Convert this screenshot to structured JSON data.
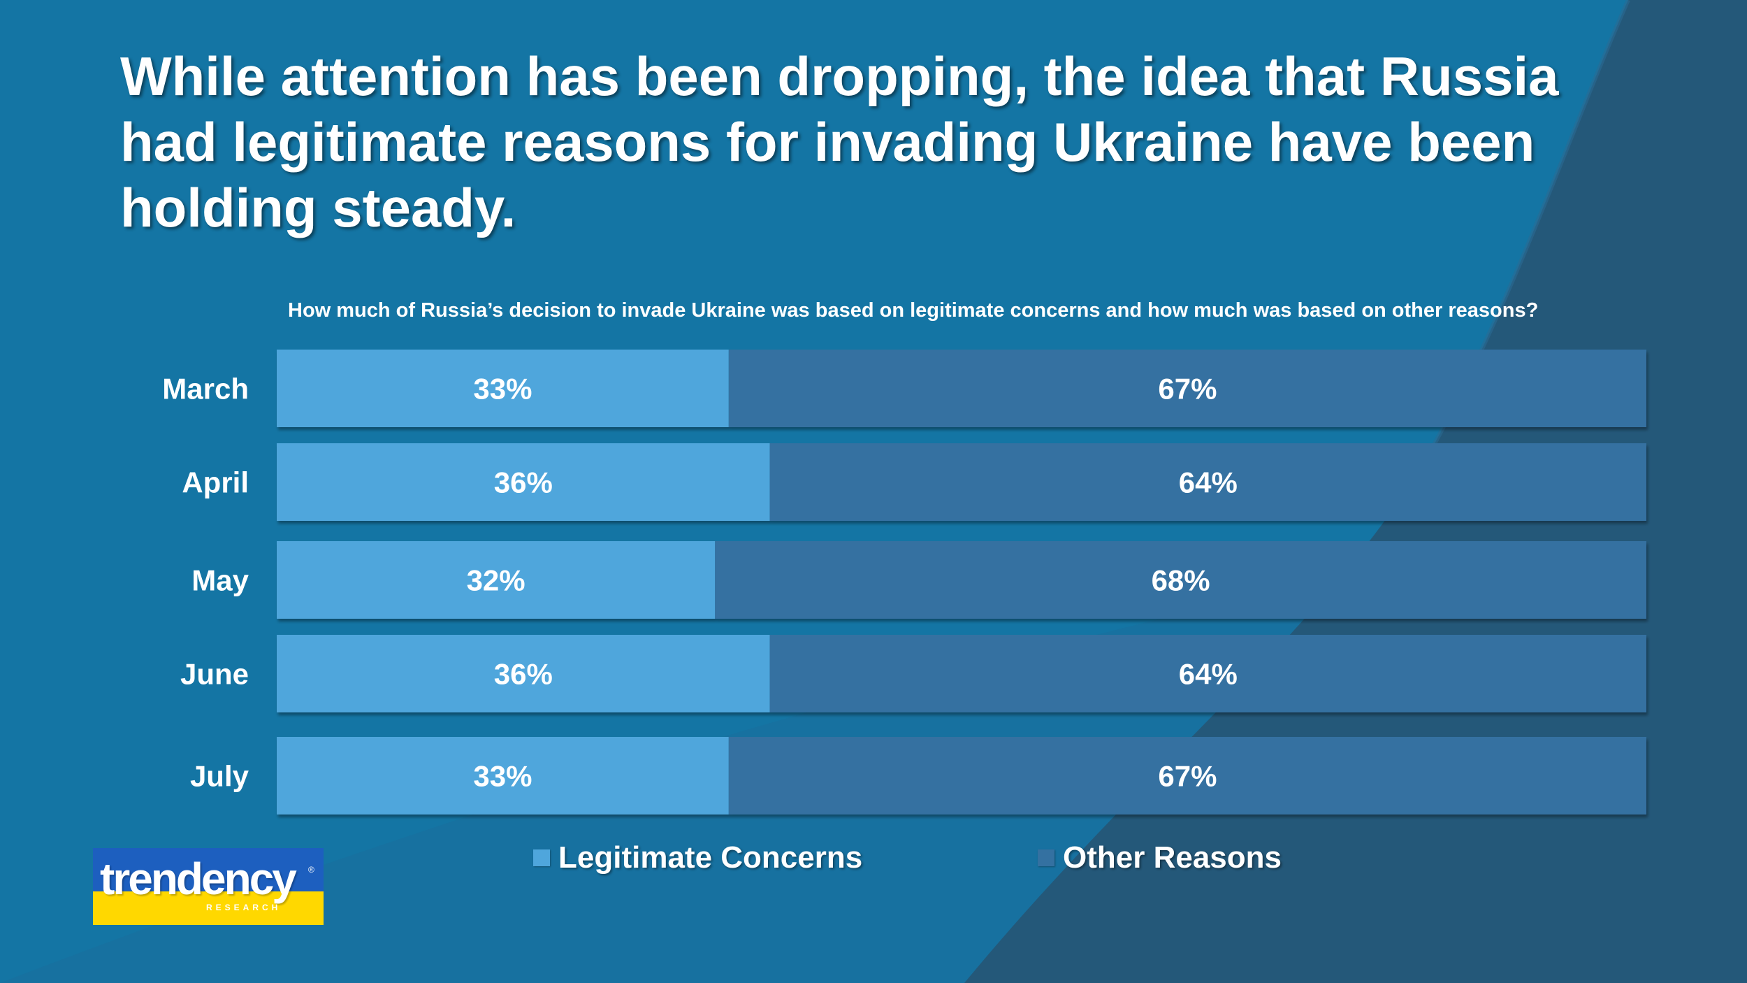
{
  "slide": {
    "title": "While attention has been dropping, the idea that Russia had legitimate reasons for invading Ukraine have been holding steady.",
    "colors": {
      "background": "#1475a4",
      "background_dark": "#245879",
      "legit": "#4fa6dc",
      "other": "#3471a1",
      "text": "#ffffff"
    }
  },
  "chart_data": {
    "type": "bar",
    "orientation": "horizontal",
    "stacked": true,
    "title": "How much of Russia’s decision to invade Ukraine was based on legitimate concerns and how much was based on other reasons?",
    "categories": [
      "March",
      "April",
      "May",
      "June",
      "July"
    ],
    "series": [
      {
        "name": "Legitimate Concerns",
        "values": [
          33,
          36,
          32,
          36,
          33
        ],
        "labels": [
          "33%",
          "36%",
          "32%",
          "36%",
          "33%"
        ],
        "color": "#4fa6dc"
      },
      {
        "name": "Other Reasons",
        "values": [
          67,
          64,
          68,
          64,
          67
        ],
        "labels": [
          "67%",
          "64%",
          "68%",
          "64%",
          "67%"
        ],
        "color": "#3471a1"
      }
    ],
    "xlim": [
      0,
      100
    ],
    "legend_position": "bottom"
  },
  "logo": {
    "wordmark": "trendency",
    "registered": "®",
    "subtitle": "RESEARCH"
  }
}
